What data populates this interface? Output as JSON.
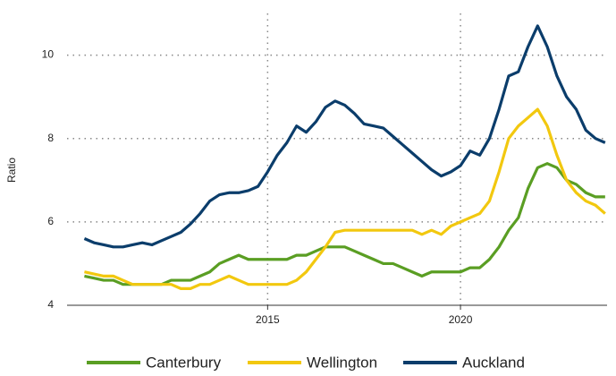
{
  "chart_data": {
    "type": "line",
    "y_label": "Ratio",
    "x": [
      2010.25,
      2010.5,
      2010.75,
      2011,
      2011.25,
      2011.5,
      2011.75,
      2012,
      2012.25,
      2012.5,
      2012.75,
      2013,
      2013.25,
      2013.5,
      2013.75,
      2014,
      2014.25,
      2014.5,
      2014.75,
      2015,
      2015.25,
      2015.5,
      2015.75,
      2016,
      2016.25,
      2016.5,
      2016.75,
      2017,
      2017.25,
      2017.5,
      2017.75,
      2018,
      2018.25,
      2018.5,
      2018.75,
      2019,
      2019.25,
      2019.5,
      2019.75,
      2020,
      2020.25,
      2020.5,
      2020.75,
      2021,
      2021.25,
      2021.5,
      2021.75,
      2022,
      2022.25,
      2022.5,
      2022.75,
      2023,
      2023.25,
      2023.5,
      2023.75
    ],
    "series": [
      {
        "name": "Canterbury",
        "color": "#5a9e23",
        "values": [
          4.7,
          4.65,
          4.6,
          4.6,
          4.5,
          4.5,
          4.5,
          4.5,
          4.5,
          4.6,
          4.6,
          4.6,
          4.7,
          4.8,
          5.0,
          5.1,
          5.2,
          5.1,
          5.1,
          5.1,
          5.1,
          5.1,
          5.2,
          5.2,
          5.3,
          5.4,
          5.4,
          5.4,
          5.3,
          5.2,
          5.1,
          5.0,
          5.0,
          4.9,
          4.8,
          4.7,
          4.8,
          4.8,
          4.8,
          4.8,
          4.9,
          4.9,
          5.1,
          5.4,
          5.8,
          6.1,
          6.8,
          7.3,
          7.4,
          7.3,
          7.0,
          6.9,
          6.7,
          6.6,
          6.6
        ]
      },
      {
        "name": "Wellington",
        "color": "#f2c80f",
        "values": [
          4.8,
          4.75,
          4.7,
          4.7,
          4.6,
          4.5,
          4.5,
          4.5,
          4.5,
          4.5,
          4.4,
          4.4,
          4.5,
          4.5,
          4.6,
          4.7,
          4.6,
          4.5,
          4.5,
          4.5,
          4.5,
          4.5,
          4.6,
          4.8,
          5.1,
          5.4,
          5.75,
          5.8,
          5.8,
          5.8,
          5.8,
          5.8,
          5.8,
          5.8,
          5.8,
          5.7,
          5.8,
          5.7,
          5.9,
          6.0,
          6.1,
          6.2,
          6.5,
          7.2,
          8.0,
          8.3,
          8.5,
          8.7,
          8.3,
          7.6,
          7.0,
          6.7,
          6.5,
          6.4,
          6.2
        ]
      },
      {
        "name": "Auckland",
        "color": "#0b3d6b",
        "values": [
          5.6,
          5.5,
          5.45,
          5.4,
          5.4,
          5.45,
          5.5,
          5.45,
          5.55,
          5.65,
          5.75,
          5.95,
          6.2,
          6.5,
          6.65,
          6.7,
          6.7,
          6.75,
          6.85,
          7.2,
          7.6,
          7.9,
          8.3,
          8.15,
          8.4,
          8.75,
          8.9,
          8.8,
          8.6,
          8.35,
          8.3,
          8.25,
          8.05,
          7.85,
          7.65,
          7.45,
          7.25,
          7.1,
          7.2,
          7.35,
          7.7,
          7.6,
          8.0,
          8.7,
          9.5,
          9.6,
          10.2,
          10.7,
          10.2,
          9.5,
          9.0,
          8.7,
          8.2,
          8.0,
          7.9
        ]
      }
    ],
    "xlim": [
      2009.8,
      2023.8
    ],
    "xticks": [
      2015,
      2020
    ],
    "ylim": [
      4,
      11
    ],
    "yticks": [
      4,
      6,
      8,
      10
    ],
    "grid": true,
    "legend": "bottom"
  }
}
